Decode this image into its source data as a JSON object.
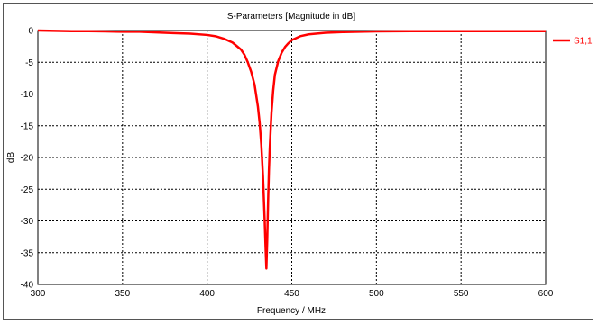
{
  "chart_data": {
    "type": "line",
    "title": "S-Parameters [Magnitude in dB]",
    "xlabel": "Frequency / MHz",
    "ylabel": "dB",
    "xlim": [
      300,
      600
    ],
    "ylim": [
      -40,
      0
    ],
    "x_ticks": [
      300,
      350,
      400,
      450,
      500,
      550,
      600
    ],
    "y_ticks": [
      0,
      -5,
      -10,
      -15,
      -20,
      -25,
      -30,
      -35,
      -40
    ],
    "grid": true,
    "legend_position": "right",
    "series": [
      {
        "name": "S1,1",
        "color": "#ff0000",
        "x": [
          300,
          310,
          320,
          330,
          340,
          350,
          360,
          370,
          380,
          390,
          400,
          405,
          410,
          415,
          420,
          422,
          424,
          426,
          428,
          430,
          431,
          432,
          433,
          434,
          434.5,
          435,
          435.5,
          436,
          436.5,
          437,
          438,
          439,
          440,
          442,
          444,
          446,
          448,
          450,
          455,
          460,
          470,
          480,
          490,
          500,
          520,
          540,
          560,
          580,
          600
        ],
        "y": [
          0,
          -0.05,
          -0.1,
          -0.1,
          -0.15,
          -0.2,
          -0.2,
          -0.3,
          -0.4,
          -0.5,
          -0.7,
          -0.9,
          -1.3,
          -1.9,
          -3.0,
          -3.8,
          -5.0,
          -6.5,
          -8.5,
          -12.0,
          -14.5,
          -18.0,
          -23.0,
          -30.0,
          -34.0,
          -37.5,
          -33.0,
          -27.0,
          -22.0,
          -18.5,
          -13.0,
          -9.5,
          -7.0,
          -4.8,
          -3.5,
          -2.6,
          -2.0,
          -1.5,
          -0.9,
          -0.6,
          -0.35,
          -0.25,
          -0.2,
          -0.15,
          -0.1,
          -0.1,
          -0.1,
          -0.1,
          -0.1
        ]
      }
    ]
  }
}
